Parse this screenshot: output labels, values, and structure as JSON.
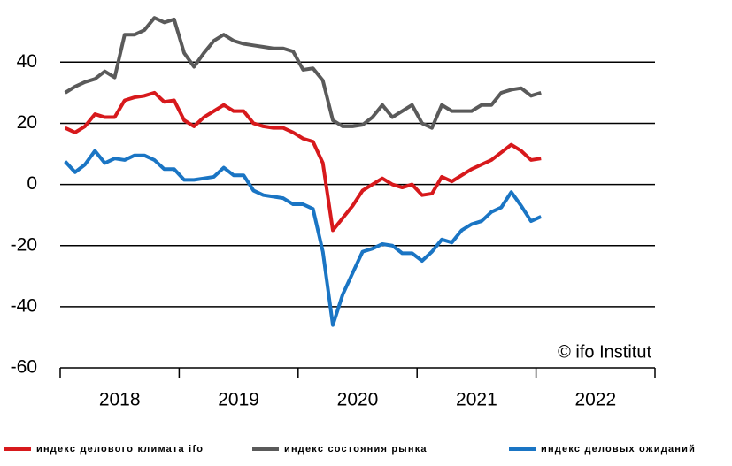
{
  "chart_data": {
    "type": "line",
    "x": [
      2018.042,
      2018.125,
      2018.208,
      2018.292,
      2018.375,
      2018.458,
      2018.542,
      2018.625,
      2018.708,
      2018.792,
      2018.875,
      2018.958,
      2019.042,
      2019.125,
      2019.208,
      2019.292,
      2019.375,
      2019.458,
      2019.542,
      2019.625,
      2019.708,
      2019.792,
      2019.875,
      2019.958,
      2020.042,
      2020.125,
      2020.208,
      2020.292,
      2020.375,
      2020.458,
      2020.542,
      2020.625,
      2020.708,
      2020.792,
      2020.875,
      2020.958,
      2021.042,
      2021.125,
      2021.208,
      2021.292,
      2021.375,
      2021.458,
      2021.542,
      2021.625,
      2021.708,
      2021.792,
      2021.875,
      2021.958,
      2022.042
    ],
    "series": [
      {
        "name": "индекс делового климата ifo",
        "color": "#d7191c",
        "values": [
          18.5,
          17,
          19,
          23,
          22,
          22,
          27.5,
          28.5,
          29,
          30,
          27,
          27.5,
          21,
          19,
          22,
          24,
          26,
          24,
          24,
          20,
          19,
          18.5,
          18.5,
          17,
          15,
          14,
          7,
          -15,
          -11,
          -7,
          -2,
          0,
          2,
          0,
          -1,
          0,
          -3.5,
          -3,
          2.5,
          1,
          3,
          5,
          6.5,
          8,
          10.5,
          13,
          11,
          8,
          8.5
        ]
      },
      {
        "name": "индекс состояния рынка",
        "color": "#5a5a5a",
        "values": [
          30,
          32,
          33.5,
          34.5,
          37,
          35,
          49,
          49,
          50.5,
          54.5,
          53,
          54,
          43,
          38.5,
          43,
          47,
          49,
          47,
          46,
          45.5,
          45,
          44.5,
          44.5,
          43.5,
          37.5,
          38,
          34,
          21,
          19,
          19,
          19.5,
          22,
          26,
          22,
          24,
          26,
          20,
          18.5,
          26,
          24,
          24,
          24,
          26,
          26,
          30,
          31,
          31.5,
          29,
          30
        ]
      },
      {
        "name": "индекс деловых ожиданий",
        "color": "#1a75c4",
        "values": [
          7.5,
          4,
          6.5,
          11,
          7,
          8.5,
          8,
          9.5,
          9.5,
          8,
          5,
          5,
          1.5,
          1.5,
          2,
          2.5,
          5.5,
          3,
          3,
          -2,
          -3.5,
          -4,
          -4.5,
          -6.5,
          -6.5,
          -8,
          -22,
          -46,
          -36,
          -29,
          -22,
          -21,
          -19.5,
          -20,
          -22.5,
          -22.5,
          -25,
          -22,
          -18,
          -19,
          -15,
          -13,
          -12,
          -9,
          -7.5,
          -2.5,
          -7,
          -12,
          -10.5
        ]
      }
    ],
    "xlim": [
      2018,
      2023
    ],
    "xticks": [
      2018,
      2019,
      2020,
      2021,
      2022,
      2023
    ],
    "year_labels": [
      2018,
      2019,
      2020,
      2021,
      2022
    ],
    "ylim": [
      -60,
      56
    ],
    "yticks": [
      -60,
      -40,
      -20,
      0,
      20,
      40
    ],
    "grid": true,
    "annotation": "© ifo Institut",
    "legend": "bottom"
  }
}
